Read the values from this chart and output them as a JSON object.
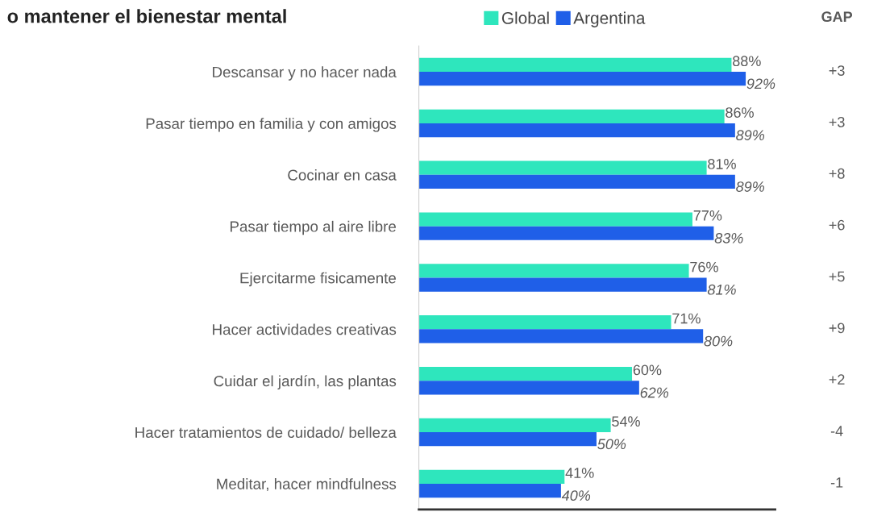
{
  "chart_data": {
    "type": "bar",
    "orientation": "horizontal",
    "title": "o mantener el bienestar mental",
    "categories": [
      "Descansar y no hacer nada",
      "Pasar tiempo en familia y con amigos",
      "Cocinar en casa",
      "Pasar tiempo al aire libre",
      "Ejercitarme fisicamente",
      "Hacer actividades creativas",
      "Cuidar el jardín, las plantas",
      "Hacer tratamientos de cuidado/ belleza",
      "Meditar, hacer mindfulness"
    ],
    "series": [
      {
        "name": "Global",
        "color": "#2ee6bd",
        "values": [
          88,
          86,
          81,
          77,
          76,
          71,
          60,
          54,
          41
        ],
        "value_labels": [
          "88%",
          "86%",
          "81%",
          "77%",
          "76%",
          "71%",
          "60%",
          "54%",
          "41%"
        ]
      },
      {
        "name": "Argentina",
        "color": "#1f5fe8",
        "values": [
          92,
          89,
          89,
          83,
          81,
          80,
          62,
          50,
          40
        ],
        "value_labels": [
          "92%",
          "89%",
          "89%",
          "83%",
          "81%",
          "80%",
          "62%",
          "50%",
          "40%"
        ]
      }
    ],
    "annotations": [
      "GAP",
      "+3",
      "+3",
      "+8",
      "+6",
      "+5",
      "+9",
      "+2",
      "-4",
      "-1"
    ],
    "legend": "top",
    "grid": false,
    "tick_labels": "y"
  }
}
